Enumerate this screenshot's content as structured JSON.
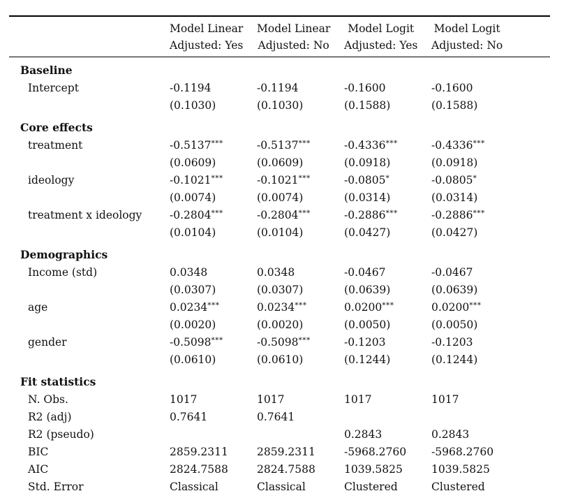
{
  "page": {
    "background": "#ffffff",
    "text_color": "#111111",
    "rule_color": "#000000"
  },
  "table": {
    "corner_label": "",
    "columns": [
      {
        "model": "Model Linear",
        "adjusted": "Adjusted: Yes"
      },
      {
        "model": "Model Linear",
        "adjusted": "Adjusted: No"
      },
      {
        "model": "Model Logit",
        "adjusted": "Adjusted: Yes"
      },
      {
        "model": "Model Logit",
        "adjusted": "Adjusted: No"
      }
    ],
    "sections": [
      {
        "title": "Baseline",
        "rows": [
          {
            "label": "Intercept",
            "est": [
              "-0.1194",
              "-0.1194",
              "-0.1600",
              "-0.1600"
            ],
            "stars": [
              "",
              "",
              "",
              ""
            ],
            "se": [
              "(0.1030)",
              "(0.1030)",
              "(0.1588)",
              "(0.1588)"
            ]
          }
        ]
      },
      {
        "title": "Core effects",
        "rows": [
          {
            "label": "treatment",
            "est": [
              "-0.5137",
              "-0.5137",
              "-0.4336",
              "-0.4336"
            ],
            "stars": [
              "***",
              "***",
              "***",
              "***"
            ],
            "se": [
              "(0.0609)",
              "(0.0609)",
              "(0.0918)",
              "(0.0918)"
            ]
          },
          {
            "label": "ideology",
            "est": [
              "-0.1021",
              "-0.1021",
              "-0.0805",
              "-0.0805"
            ],
            "stars": [
              "***",
              "***",
              "*",
              "*"
            ],
            "se": [
              "(0.0074)",
              "(0.0074)",
              "(0.0314)",
              "(0.0314)"
            ]
          },
          {
            "label": "treatment x ideology",
            "est": [
              "-0.2804",
              "-0.2804",
              "-0.2886",
              "-0.2886"
            ],
            "stars": [
              "***",
              "***",
              "***",
              "***"
            ],
            "se": [
              "(0.0104)",
              "(0.0104)",
              "(0.0427)",
              "(0.0427)"
            ]
          }
        ]
      },
      {
        "title": "Demographics",
        "rows": [
          {
            "label": "Income (std)",
            "est": [
              "0.0348",
              "0.0348",
              "-0.0467",
              "-0.0467"
            ],
            "stars": [
              "",
              "",
              "",
              ""
            ],
            "se": [
              "(0.0307)",
              "(0.0307)",
              "(0.0639)",
              "(0.0639)"
            ]
          },
          {
            "label": "age",
            "est": [
              "0.0234",
              "0.0234",
              "0.0200",
              "0.0200"
            ],
            "stars": [
              "***",
              "***",
              "***",
              "***"
            ],
            "se": [
              "(0.0020)",
              "(0.0020)",
              "(0.0050)",
              "(0.0050)"
            ]
          },
          {
            "label": "gender",
            "est": [
              "-0.5098",
              "-0.5098",
              "-0.1203",
              "-0.1203"
            ],
            "stars": [
              "***",
              "***",
              "",
              ""
            ],
            "se": [
              "(0.0610)",
              "(0.0610)",
              "(0.1244)",
              "(0.1244)"
            ]
          }
        ]
      },
      {
        "title": "Fit statistics",
        "stats": [
          {
            "label": "N. Obs.",
            "values": [
              "1017",
              "1017",
              "1017",
              "1017"
            ]
          },
          {
            "label": "R2 (adj)",
            "values": [
              "0.7641",
              "0.7641",
              "",
              ""
            ]
          },
          {
            "label": "R2 (pseudo)",
            "values": [
              "",
              "",
              "0.2843",
              "0.2843"
            ]
          },
          {
            "label": "BIC",
            "values": [
              "2859.2311",
              "2859.2311",
              "-5968.2760",
              "-5968.2760"
            ]
          },
          {
            "label": "AIC",
            "values": [
              "2824.7588",
              "2824.7588",
              "1039.5825",
              "1039.5825"
            ]
          },
          {
            "label": "Std. Error",
            "values": [
              "Classical",
              "Classical",
              "Clustered",
              "Clustered"
            ]
          }
        ]
      }
    ]
  }
}
